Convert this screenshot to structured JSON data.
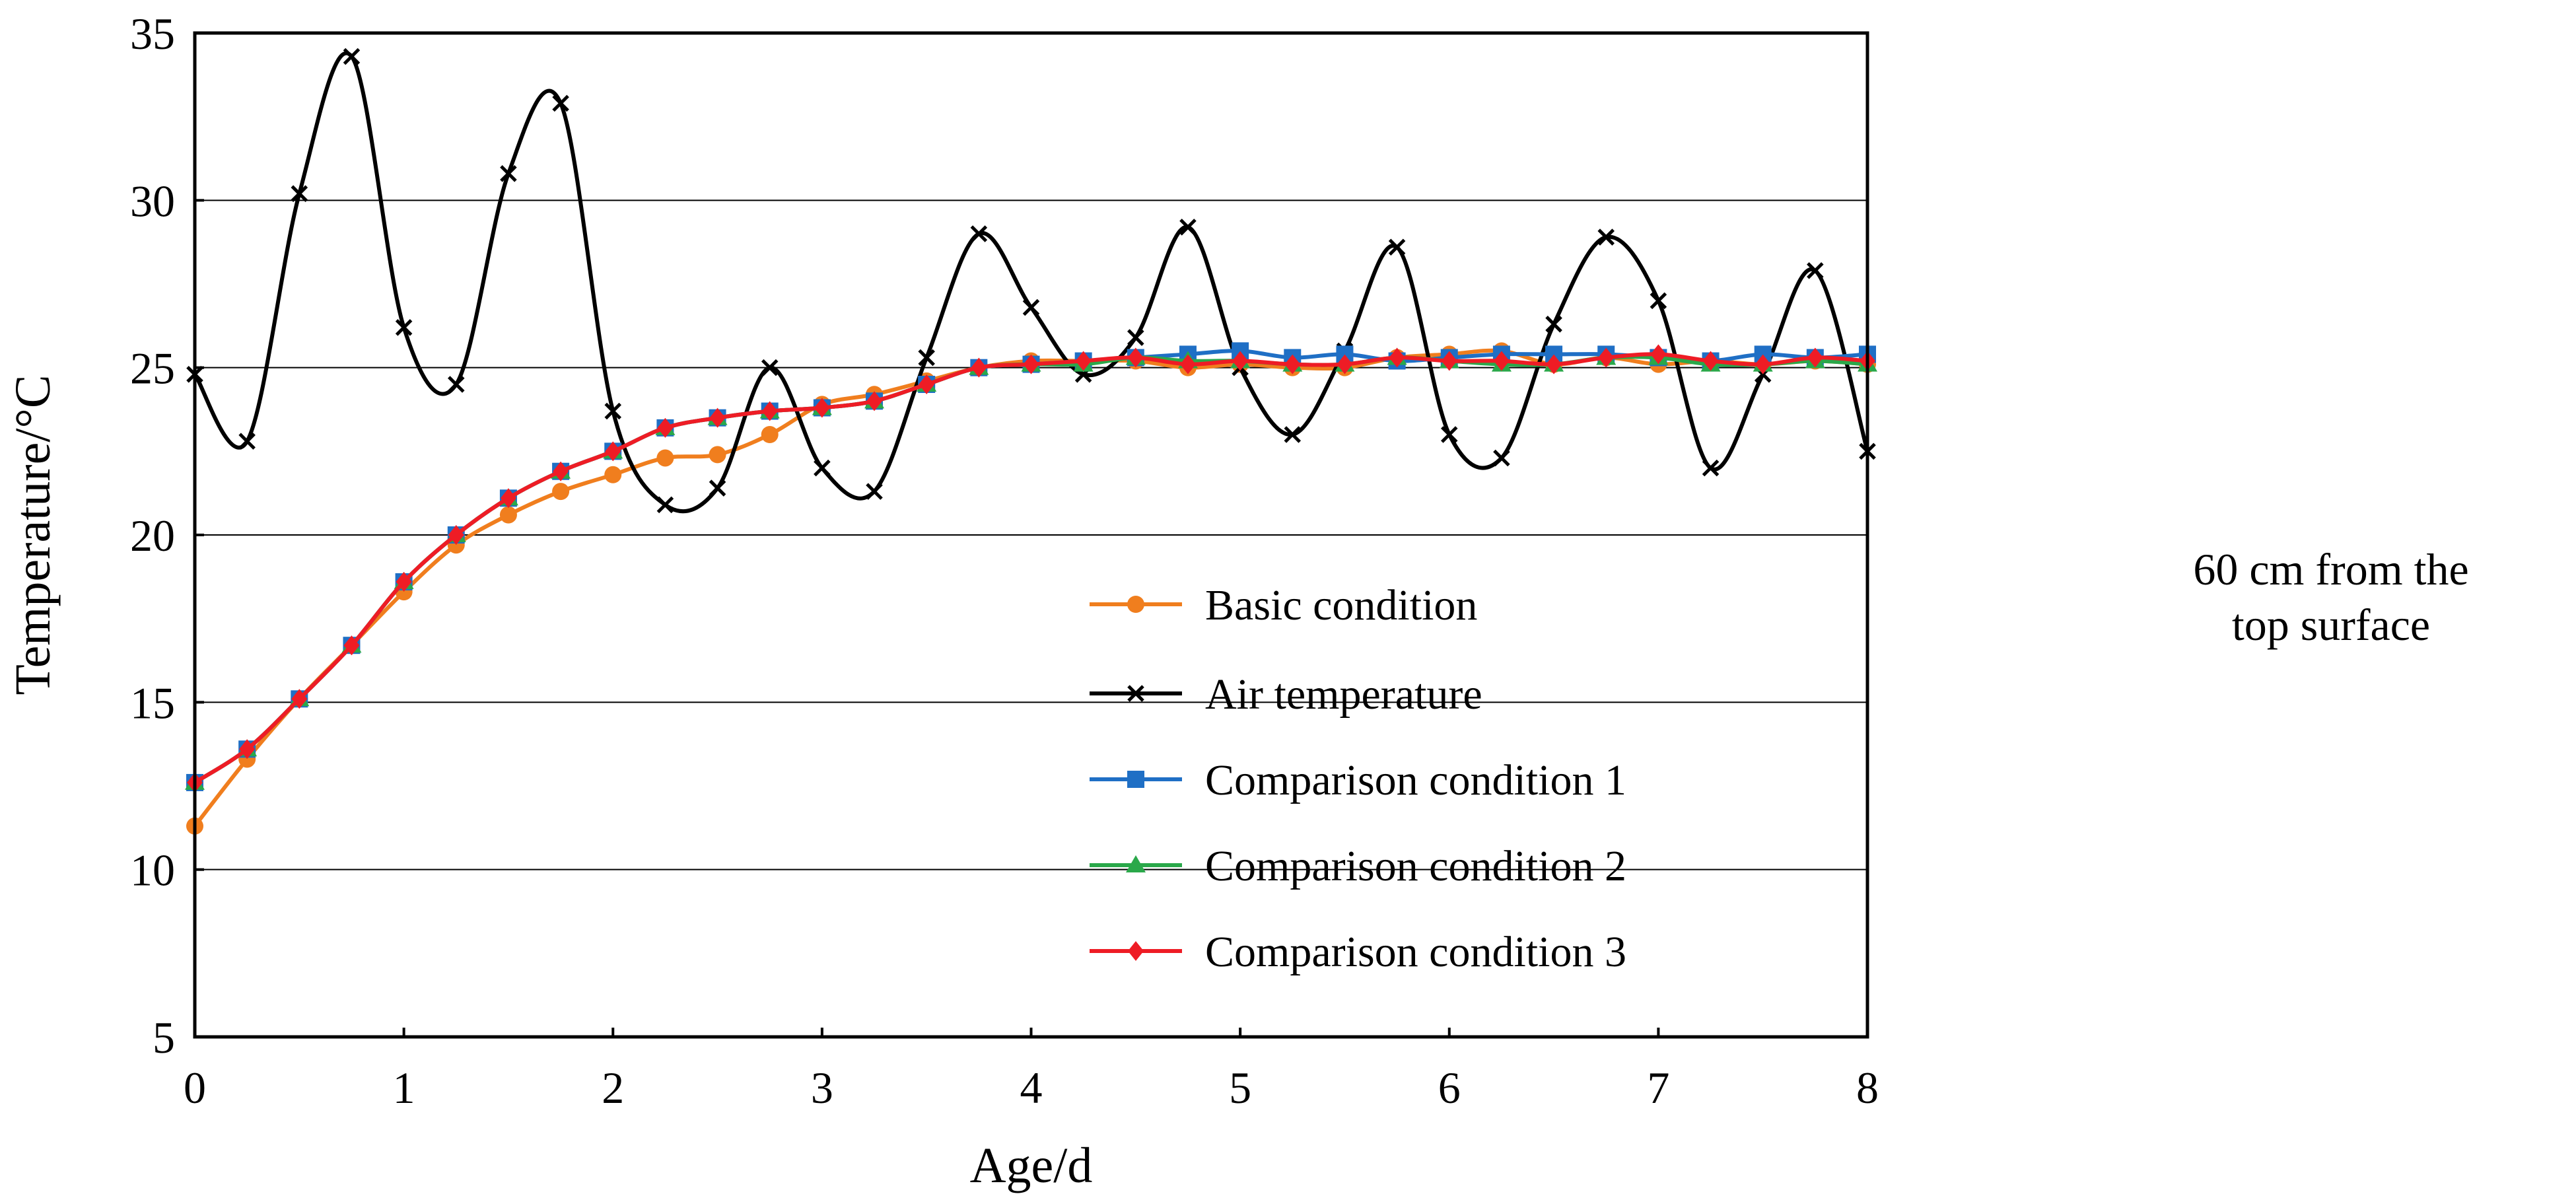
{
  "chart_data": {
    "type": "line",
    "xlabel": "Age/d",
    "ylabel": "Temperature/°C",
    "xlim": [
      0,
      8
    ],
    "ylim": [
      5,
      35
    ],
    "x_ticks": [
      0,
      1,
      2,
      3,
      4,
      5,
      6,
      7,
      8
    ],
    "y_ticks": [
      5,
      10,
      15,
      20,
      25,
      30,
      35
    ],
    "grid": "horizontal",
    "legend_position": "lower-right",
    "x": [
      0,
      0.25,
      0.5,
      0.75,
      1,
      1.25,
      1.5,
      1.75,
      2,
      2.25,
      2.5,
      2.75,
      3,
      3.25,
      3.5,
      3.75,
      4,
      4.25,
      4.5,
      4.75,
      5,
      5.25,
      5.5,
      5.75,
      6,
      6.25,
      6.5,
      6.75,
      7,
      7.25,
      7.5,
      7.75,
      8
    ],
    "series": [
      {
        "name": "Basic condition",
        "color": "#F07E1E",
        "marker": "circle",
        "values": [
          11.3,
          13.3,
          15.1,
          16.7,
          18.3,
          19.7,
          20.6,
          21.3,
          21.8,
          22.3,
          22.4,
          23.0,
          23.9,
          24.2,
          24.6,
          25.0,
          25.2,
          25.2,
          25.2,
          25.0,
          25.1,
          25.0,
          25.0,
          25.3,
          25.4,
          25.5,
          25.1,
          25.3,
          25.1,
          25.2,
          25.1,
          25.2,
          25.1
        ]
      },
      {
        "name": "Air temperature",
        "color": "#000000",
        "marker": "x",
        "values": [
          24.8,
          22.8,
          30.2,
          34.3,
          26.2,
          24.5,
          30.8,
          32.9,
          23.7,
          20.9,
          21.4,
          25.0,
          22.0,
          21.3,
          25.3,
          29.0,
          26.8,
          24.8,
          25.9,
          29.2,
          25.0,
          23.0,
          25.5,
          28.6,
          23.0,
          22.3,
          26.3,
          28.9,
          27.0,
          22.0,
          24.8,
          27.9,
          22.5
        ]
      },
      {
        "name": "Comparison condition 1",
        "color": "#1F6FC5",
        "marker": "square",
        "values": [
          12.6,
          13.6,
          15.1,
          16.7,
          18.6,
          20.0,
          21.1,
          21.9,
          22.5,
          23.2,
          23.5,
          23.7,
          23.8,
          24.0,
          24.5,
          25.0,
          25.1,
          25.2,
          25.3,
          25.4,
          25.5,
          25.3,
          25.4,
          25.2,
          25.3,
          25.4,
          25.4,
          25.4,
          25.3,
          25.2,
          25.4,
          25.3,
          25.4
        ]
      },
      {
        "name": "Comparison condition 2",
        "color": "#2AA84A",
        "marker": "triangle",
        "values": [
          12.6,
          13.6,
          15.1,
          16.7,
          18.6,
          20.0,
          21.1,
          21.9,
          22.5,
          23.2,
          23.5,
          23.7,
          23.8,
          24.0,
          24.5,
          25.0,
          25.1,
          25.1,
          25.3,
          25.2,
          25.2,
          25.1,
          25.1,
          25.3,
          25.2,
          25.1,
          25.1,
          25.3,
          25.3,
          25.1,
          25.1,
          25.2,
          25.1
        ]
      },
      {
        "name": "Comparison condition 3",
        "color": "#EE1C25",
        "marker": "diamond",
        "values": [
          12.6,
          13.6,
          15.1,
          16.7,
          18.6,
          20.0,
          21.1,
          21.9,
          22.5,
          23.2,
          23.5,
          23.7,
          23.8,
          24.0,
          24.5,
          25.0,
          25.1,
          25.2,
          25.3,
          25.1,
          25.2,
          25.1,
          25.1,
          25.3,
          25.2,
          25.2,
          25.1,
          25.3,
          25.4,
          25.2,
          25.1,
          25.3,
          25.2
        ]
      }
    ]
  },
  "annotation": {
    "line1": "60 cm from the",
    "line2": "top surface"
  }
}
